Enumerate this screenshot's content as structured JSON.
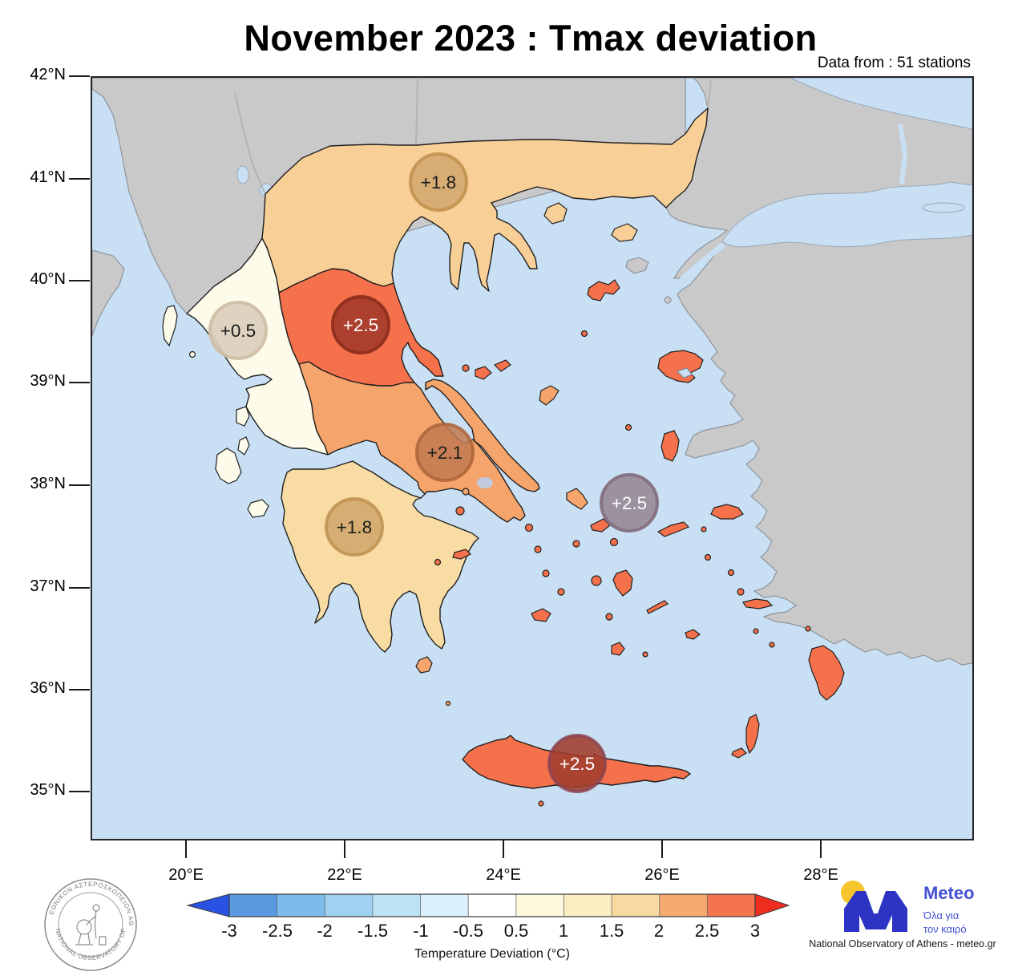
{
  "header": {
    "title": "November 2023 : Tmax deviation",
    "subtitle": "Data from : 51 stations"
  },
  "axes": {
    "lat": [
      "42°N",
      "41°N",
      "40°N",
      "39°N",
      "38°N",
      "37°N",
      "36°N",
      "35°N"
    ],
    "lon": [
      "20°E",
      "22°E",
      "24°E",
      "26°E",
      "28°E"
    ]
  },
  "map_data": {
    "type": "choropleth-map",
    "area_shown": "Greece and the Aegean",
    "stations": [
      {
        "value": "+1.8",
        "area": "Central Macedonia",
        "approx_lon": 23.2,
        "approx_lat": 41.0,
        "fill": "#d2a76e",
        "ring": "#c1924f",
        "text": "#1c1c1c"
      },
      {
        "value": "+0.5",
        "area": "Epirus",
        "approx_lon": 20.6,
        "approx_lat": 39.5,
        "fill": "#dacdbb",
        "ring": "#cdbca4",
        "text": "#1c1c1c"
      },
      {
        "value": "+2.5",
        "area": "Thessaly",
        "approx_lon": 22.2,
        "approx_lat": 39.6,
        "fill": "#a83c2b",
        "ring": "#8f2f1f",
        "text": "#ffffff"
      },
      {
        "value": "+2.1",
        "area": "Boeotia / Attica",
        "approx_lon": 23.2,
        "approx_lat": 38.3,
        "fill": "#c17a50",
        "ring": "#ad6538",
        "text": "#1c1c1c"
      },
      {
        "value": "+1.8",
        "area": "Peloponnese",
        "approx_lon": 22.1,
        "approx_lat": 37.6,
        "fill": "#d0a66c",
        "ring": "#bf9150",
        "text": "#1c1c1c"
      },
      {
        "value": "+2.5",
        "area": "Central Aegean",
        "approx_l on": 25.6,
        "approx_lat": 37.8,
        "fill": "#9a8c99",
        "ring": "#857081",
        "text": "#ffffff"
      },
      {
        "value": "+2.5",
        "area": "Crete",
        "approx_lon": 24.9,
        "approx_lat": 35.3,
        "fill": "#a13c2e",
        "ring": "#8c4352",
        "text": "#ffffff"
      }
    ],
    "regions": [
      {
        "name": "Macedonia & Thrace",
        "color": "#f8cf96"
      },
      {
        "name": "Epirus & Aetolia-Acarnania",
        "color": "#fdfbe9"
      },
      {
        "name": "Thessaly & eastern Aegean islands",
        "color": "#f4714b"
      },
      {
        "name": "Central Greece, Attica & Euboea",
        "color": "#f5a46b"
      },
      {
        "name": "Peloponnese",
        "color": "#f8dca4"
      },
      {
        "name": "Crete",
        "color": "#f4714b"
      },
      {
        "name": "Neighbouring countries",
        "color": "#c9c9c9"
      },
      {
        "name": "Sea",
        "color": "#c9e0f4"
      }
    ]
  },
  "colorbar": {
    "label": "Temperature Deviation (°C)",
    "ticks": [
      "-3",
      "-2.5",
      "-2",
      "-1.5",
      "-1",
      "-0.5",
      "0.5",
      "1",
      "1.5",
      "2",
      "2.5",
      "3"
    ],
    "segments": [
      "#5a9ae0",
      "#7cbbec",
      "#9ed2f0",
      "#bce3f5",
      "#daf0fa",
      "#ffffff",
      "#fdf8dc",
      "#fbeec2",
      "#f8d9a2",
      "#f6aa70",
      "#f4744e"
    ],
    "left_arrow": "#2a52e2",
    "right_arrow": "#ee2d1f"
  },
  "footer": {
    "attribution": "National Observatory of Athens - meteo.gr",
    "logo": {
      "name": "Meteo",
      "tagline1": "Όλα για",
      "tagline2": "τον καιρό"
    },
    "seal": {
      "top": "ΕΘΝΙΚΟΝ ΑΣΤΕΡΟΣΚΟΠΕΙΟΝ ΑΘΗΝΩΝ",
      "bottom": "NATIONAL OBSERVATORY OF ATHENS"
    }
  }
}
